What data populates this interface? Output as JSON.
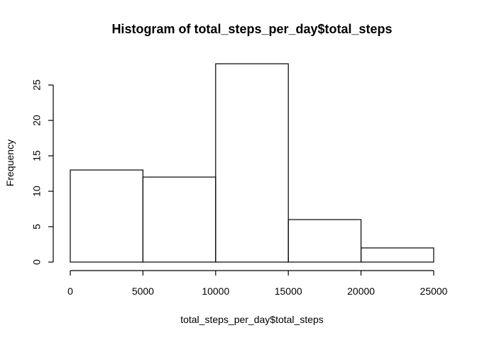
{
  "chart_data": {
    "type": "bar",
    "title": "Histogram of total_steps_per_day$total_steps",
    "xlabel": "total_steps_per_day$total_steps",
    "ylabel": "Frequency",
    "bins": [
      {
        "start": 0,
        "end": 5000,
        "count": 13
      },
      {
        "start": 5000,
        "end": 10000,
        "count": 12
      },
      {
        "start": 10000,
        "end": 15000,
        "count": 28
      },
      {
        "start": 15000,
        "end": 20000,
        "count": 6
      },
      {
        "start": 20000,
        "end": 25000,
        "count": 2
      }
    ],
    "xlim": [
      0,
      25000
    ],
    "ylim": [
      0,
      28
    ],
    "x_ticks": [
      0,
      5000,
      10000,
      15000,
      20000,
      25000
    ],
    "y_ticks": [
      0,
      5,
      10,
      15,
      20,
      25
    ],
    "grid": false,
    "colors": {
      "bar_fill": "#ffffff",
      "bar_stroke": "#000000"
    }
  }
}
